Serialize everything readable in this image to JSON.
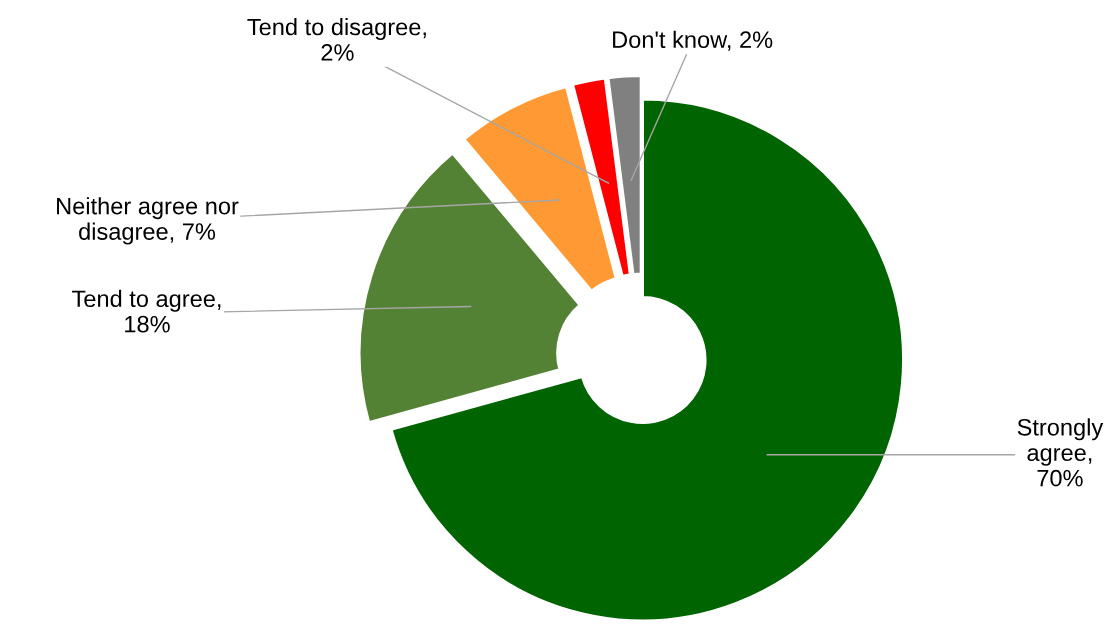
{
  "chart_data": {
    "type": "donut",
    "categories": [
      "Strongly agree, 70%",
      "Tend to agree, 18%",
      "Neither agree nor disagree, 7%",
      "Tend to disagree, 2%",
      "Don't know, 2%"
    ],
    "values": [
      70,
      18,
      7,
      2,
      2
    ],
    "colors": [
      "#006400",
      "#548235",
      "#ff9933",
      "#ff0000",
      "#808080"
    ]
  }
}
